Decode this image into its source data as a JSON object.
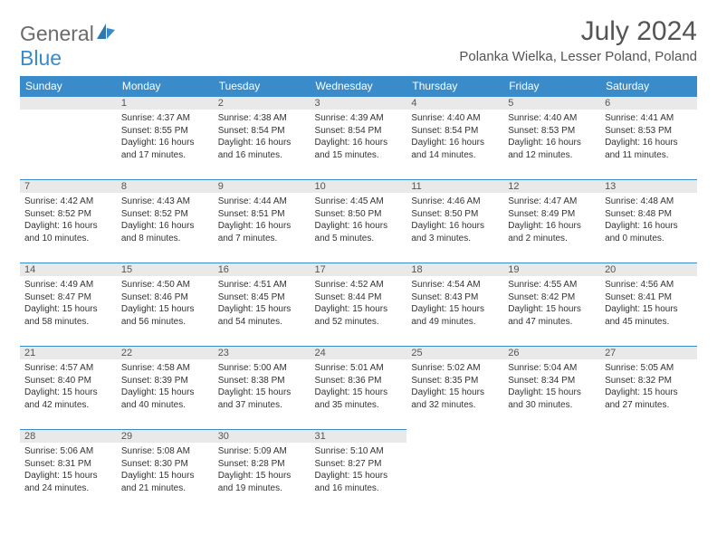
{
  "brand": {
    "part1": "General",
    "part2": "Blue"
  },
  "title": "July 2024",
  "location": "Polanka Wielka, Lesser Poland, Poland",
  "colors": {
    "header_bg": "#3a8bc9",
    "daynum_bg": "#e9e9e9",
    "daynum_border": "#3a8bc9",
    "text_primary": "#333333",
    "text_muted": "#555555",
    "logo_grey": "#6b6b6b",
    "logo_blue": "#3a8bc9",
    "page_bg": "#ffffff"
  },
  "typography": {
    "title_fontsize": 30,
    "location_fontsize": 15,
    "dayheader_fontsize": 12,
    "daynum_fontsize": 11,
    "cell_fontsize": 10
  },
  "day_headers": [
    "Sunday",
    "Monday",
    "Tuesday",
    "Wednesday",
    "Thursday",
    "Friday",
    "Saturday"
  ],
  "weeks": [
    [
      null,
      {
        "n": "1",
        "sr": "Sunrise: 4:37 AM",
        "ss": "Sunset: 8:55 PM",
        "d1": "Daylight: 16 hours",
        "d2": "and 17 minutes."
      },
      {
        "n": "2",
        "sr": "Sunrise: 4:38 AM",
        "ss": "Sunset: 8:54 PM",
        "d1": "Daylight: 16 hours",
        "d2": "and 16 minutes."
      },
      {
        "n": "3",
        "sr": "Sunrise: 4:39 AM",
        "ss": "Sunset: 8:54 PM",
        "d1": "Daylight: 16 hours",
        "d2": "and 15 minutes."
      },
      {
        "n": "4",
        "sr": "Sunrise: 4:40 AM",
        "ss": "Sunset: 8:54 PM",
        "d1": "Daylight: 16 hours",
        "d2": "and 14 minutes."
      },
      {
        "n": "5",
        "sr": "Sunrise: 4:40 AM",
        "ss": "Sunset: 8:53 PM",
        "d1": "Daylight: 16 hours",
        "d2": "and 12 minutes."
      },
      {
        "n": "6",
        "sr": "Sunrise: 4:41 AM",
        "ss": "Sunset: 8:53 PM",
        "d1": "Daylight: 16 hours",
        "d2": "and 11 minutes."
      }
    ],
    [
      {
        "n": "7",
        "sr": "Sunrise: 4:42 AM",
        "ss": "Sunset: 8:52 PM",
        "d1": "Daylight: 16 hours",
        "d2": "and 10 minutes."
      },
      {
        "n": "8",
        "sr": "Sunrise: 4:43 AM",
        "ss": "Sunset: 8:52 PM",
        "d1": "Daylight: 16 hours",
        "d2": "and 8 minutes."
      },
      {
        "n": "9",
        "sr": "Sunrise: 4:44 AM",
        "ss": "Sunset: 8:51 PM",
        "d1": "Daylight: 16 hours",
        "d2": "and 7 minutes."
      },
      {
        "n": "10",
        "sr": "Sunrise: 4:45 AM",
        "ss": "Sunset: 8:50 PM",
        "d1": "Daylight: 16 hours",
        "d2": "and 5 minutes."
      },
      {
        "n": "11",
        "sr": "Sunrise: 4:46 AM",
        "ss": "Sunset: 8:50 PM",
        "d1": "Daylight: 16 hours",
        "d2": "and 3 minutes."
      },
      {
        "n": "12",
        "sr": "Sunrise: 4:47 AM",
        "ss": "Sunset: 8:49 PM",
        "d1": "Daylight: 16 hours",
        "d2": "and 2 minutes."
      },
      {
        "n": "13",
        "sr": "Sunrise: 4:48 AM",
        "ss": "Sunset: 8:48 PM",
        "d1": "Daylight: 16 hours",
        "d2": "and 0 minutes."
      }
    ],
    [
      {
        "n": "14",
        "sr": "Sunrise: 4:49 AM",
        "ss": "Sunset: 8:47 PM",
        "d1": "Daylight: 15 hours",
        "d2": "and 58 minutes."
      },
      {
        "n": "15",
        "sr": "Sunrise: 4:50 AM",
        "ss": "Sunset: 8:46 PM",
        "d1": "Daylight: 15 hours",
        "d2": "and 56 minutes."
      },
      {
        "n": "16",
        "sr": "Sunrise: 4:51 AM",
        "ss": "Sunset: 8:45 PM",
        "d1": "Daylight: 15 hours",
        "d2": "and 54 minutes."
      },
      {
        "n": "17",
        "sr": "Sunrise: 4:52 AM",
        "ss": "Sunset: 8:44 PM",
        "d1": "Daylight: 15 hours",
        "d2": "and 52 minutes."
      },
      {
        "n": "18",
        "sr": "Sunrise: 4:54 AM",
        "ss": "Sunset: 8:43 PM",
        "d1": "Daylight: 15 hours",
        "d2": "and 49 minutes."
      },
      {
        "n": "19",
        "sr": "Sunrise: 4:55 AM",
        "ss": "Sunset: 8:42 PM",
        "d1": "Daylight: 15 hours",
        "d2": "and 47 minutes."
      },
      {
        "n": "20",
        "sr": "Sunrise: 4:56 AM",
        "ss": "Sunset: 8:41 PM",
        "d1": "Daylight: 15 hours",
        "d2": "and 45 minutes."
      }
    ],
    [
      {
        "n": "21",
        "sr": "Sunrise: 4:57 AM",
        "ss": "Sunset: 8:40 PM",
        "d1": "Daylight: 15 hours",
        "d2": "and 42 minutes."
      },
      {
        "n": "22",
        "sr": "Sunrise: 4:58 AM",
        "ss": "Sunset: 8:39 PM",
        "d1": "Daylight: 15 hours",
        "d2": "and 40 minutes."
      },
      {
        "n": "23",
        "sr": "Sunrise: 5:00 AM",
        "ss": "Sunset: 8:38 PM",
        "d1": "Daylight: 15 hours",
        "d2": "and 37 minutes."
      },
      {
        "n": "24",
        "sr": "Sunrise: 5:01 AM",
        "ss": "Sunset: 8:36 PM",
        "d1": "Daylight: 15 hours",
        "d2": "and 35 minutes."
      },
      {
        "n": "25",
        "sr": "Sunrise: 5:02 AM",
        "ss": "Sunset: 8:35 PM",
        "d1": "Daylight: 15 hours",
        "d2": "and 32 minutes."
      },
      {
        "n": "26",
        "sr": "Sunrise: 5:04 AM",
        "ss": "Sunset: 8:34 PM",
        "d1": "Daylight: 15 hours",
        "d2": "and 30 minutes."
      },
      {
        "n": "27",
        "sr": "Sunrise: 5:05 AM",
        "ss": "Sunset: 8:32 PM",
        "d1": "Daylight: 15 hours",
        "d2": "and 27 minutes."
      }
    ],
    [
      {
        "n": "28",
        "sr": "Sunrise: 5:06 AM",
        "ss": "Sunset: 8:31 PM",
        "d1": "Daylight: 15 hours",
        "d2": "and 24 minutes."
      },
      {
        "n": "29",
        "sr": "Sunrise: 5:08 AM",
        "ss": "Sunset: 8:30 PM",
        "d1": "Daylight: 15 hours",
        "d2": "and 21 minutes."
      },
      {
        "n": "30",
        "sr": "Sunrise: 5:09 AM",
        "ss": "Sunset: 8:28 PM",
        "d1": "Daylight: 15 hours",
        "d2": "and 19 minutes."
      },
      {
        "n": "31",
        "sr": "Sunrise: 5:10 AM",
        "ss": "Sunset: 8:27 PM",
        "d1": "Daylight: 15 hours",
        "d2": "and 16 minutes."
      },
      null,
      null,
      null
    ]
  ]
}
